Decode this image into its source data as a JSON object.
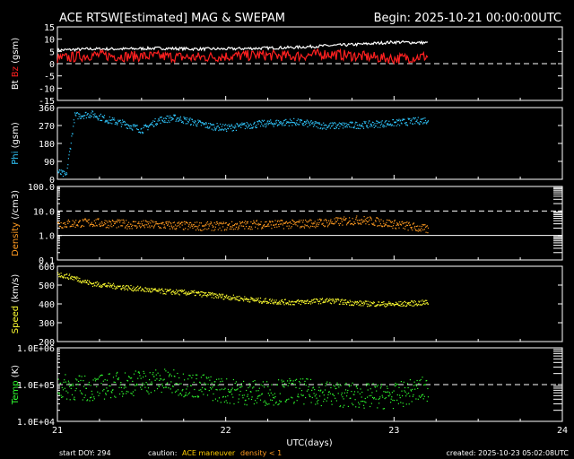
{
  "header": {
    "title": "ACE RTSW[Estimated] MAG & SWEPAM",
    "begin": "Begin: 2025-10-21 00:00:00UTC"
  },
  "footer": {
    "start_doy": "start DOY: 294",
    "caution_label": "caution:",
    "maneuver": "ACE maneuver",
    "density_note": "density < 1",
    "created": "created: 2025-10-23 05:02:08UTC"
  },
  "colors": {
    "bt": "#ffffff",
    "bz": "#ff2020",
    "phi": "#30c8ff",
    "density": "#ff9a20",
    "speed": "#ffff30",
    "temp": "#30ff30",
    "maneuver": "#ffcc00",
    "axis": "#ffffff",
    "background": "#000000"
  },
  "chart_data": {
    "type": "multi-panel time series",
    "x_label": "UTC(days)",
    "x_ticks": [
      "21",
      "22",
      "23",
      "24"
    ],
    "x_range_days": [
      21,
      24
    ],
    "data_end_day": 23.2,
    "panels": [
      {
        "id": "mag",
        "y_label_parts": [
          {
            "text": "Bt",
            "color": "#ffffff"
          },
          {
            "text": "Bz",
            "color": "#ff2020"
          },
          {
            "text": "(gsm)",
            "color": "#ffffff"
          }
        ],
        "y_ticks": [
          "15",
          "10",
          "5",
          "0",
          "-5",
          "-10",
          "-15"
        ],
        "y_tick_values": [
          15,
          10,
          5,
          0,
          -5,
          -10,
          -15
        ],
        "y_range": [
          -15,
          15
        ],
        "dashed_line": 0,
        "series": [
          {
            "name": "Bt",
            "color": "#ffffff",
            "style": "line",
            "days": [
              21.0,
              21.2,
              21.4,
              21.6,
              21.8,
              22.0,
              22.2,
              22.4,
              22.6,
              22.8,
              23.0,
              23.2
            ],
            "values": [
              5.5,
              6.0,
              6.0,
              6.3,
              6.0,
              6.0,
              6.3,
              6.6,
              7.3,
              7.9,
              8.8,
              8.5
            ]
          },
          {
            "name": "Bz",
            "color": "#ff2020",
            "style": "line",
            "days": [
              21.0,
              21.2,
              21.4,
              21.6,
              21.8,
              22.0,
              22.2,
              22.4,
              22.6,
              22.8,
              23.0,
              23.2
            ],
            "values": [
              2.0,
              3.5,
              3.0,
              3.0,
              2.5,
              3.0,
              3.5,
              3.0,
              4.0,
              3.0,
              2.0,
              3.0
            ]
          }
        ]
      },
      {
        "id": "phi",
        "y_label_parts": [
          {
            "text": "Phi",
            "color": "#30c8ff"
          },
          {
            "text": "(gsm)",
            "color": "#ffffff"
          }
        ],
        "y_ticks": [
          "360",
          "270",
          "180",
          "90",
          "0"
        ],
        "y_tick_values": [
          360,
          270,
          180,
          90,
          0
        ],
        "y_range": [
          0,
          360
        ],
        "dashed_line": null,
        "series": [
          {
            "name": "Phi",
            "color": "#30c8ff",
            "style": "points",
            "days": [
              21.0,
              21.05,
              21.1,
              21.2,
              21.3,
              21.4,
              21.5,
              21.6,
              21.7,
              21.8,
              21.9,
              22.0,
              22.2,
              22.4,
              22.6,
              22.8,
              23.0,
              23.2
            ],
            "values": [
              40,
              20,
              320,
              330,
              300,
              280,
              250,
              300,
              310,
              290,
              270,
              260,
              280,
              290,
              270,
              275,
              285,
              300
            ]
          }
        ]
      },
      {
        "id": "density",
        "y_label_parts": [
          {
            "text": "Density",
            "color": "#ff9a20"
          },
          {
            "text": "(/cm3)",
            "color": "#ffffff"
          }
        ],
        "y_ticks": [
          "100.0",
          "10.0",
          "1.0",
          "0.1"
        ],
        "y_tick_values": [
          100,
          10,
          1,
          0.1
        ],
        "y_range": [
          0.1,
          100
        ],
        "log_scale": true,
        "dashed_line": 10,
        "solid_line": 1,
        "series": [
          {
            "name": "Density",
            "color": "#ff9a20",
            "style": "points",
            "days": [
              21.0,
              21.2,
              21.4,
              21.6,
              21.8,
              22.0,
              22.2,
              22.4,
              22.6,
              22.8,
              23.0,
              23.2
            ],
            "values": [
              3.0,
              3.5,
              3.0,
              2.8,
              2.5,
              2.5,
              3.0,
              3.0,
              3.5,
              4.5,
              3.0,
              1.8
            ]
          }
        ]
      },
      {
        "id": "speed",
        "y_label_parts": [
          {
            "text": "Speed",
            "color": "#ffff30"
          },
          {
            "text": "(km/s)",
            "color": "#ffffff"
          }
        ],
        "y_ticks": [
          "600",
          "500",
          "400",
          "300",
          "200"
        ],
        "y_tick_values": [
          600,
          500,
          400,
          300,
          200
        ],
        "y_range": [
          200,
          600
        ],
        "dashed_line": null,
        "series": [
          {
            "name": "Speed",
            "color": "#ffff30",
            "style": "points",
            "days": [
              21.0,
              21.1,
              21.2,
              21.4,
              21.6,
              21.8,
              22.0,
              22.2,
              22.4,
              22.6,
              22.8,
              23.0,
              23.2
            ],
            "values": [
              560,
              540,
              510,
              490,
              470,
              460,
              440,
              420,
              410,
              420,
              405,
              400,
              410
            ]
          }
        ]
      },
      {
        "id": "temp",
        "y_label_parts": [
          {
            "text": "Temp",
            "color": "#30ff30"
          },
          {
            "text": "(K)",
            "color": "#ffffff"
          }
        ],
        "y_ticks": [
          "1.0E+06",
          "1.0E+05",
          "1.0E+04"
        ],
        "y_tick_values": [
          1000000,
          100000,
          10000
        ],
        "y_range": [
          10000,
          1000000
        ],
        "log_scale": true,
        "dashed_line": 100000,
        "series": [
          {
            "name": "Temp",
            "color": "#30ff30",
            "style": "points",
            "days": [
              21.0,
              21.2,
              21.4,
              21.6,
              21.8,
              22.0,
              22.2,
              22.4,
              22.6,
              22.8,
              23.0,
              23.2
            ],
            "values": [
              90000,
              80000,
              110000,
              130000,
              100000,
              70000,
              60000,
              70000,
              60000,
              50000,
              50000,
              80000
            ]
          }
        ]
      }
    ]
  }
}
